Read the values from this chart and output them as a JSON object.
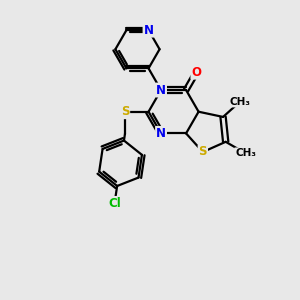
{
  "bg_color": "#e8e8e8",
  "bond_color": "#000000",
  "bond_width": 1.6,
  "atom_colors": {
    "N": "#0000ee",
    "S": "#ccaa00",
    "O": "#ff0000",
    "Cl": "#00bb00",
    "C": "#000000"
  },
  "font_size_atom": 8.5,
  "font_size_methyl": 7.5
}
